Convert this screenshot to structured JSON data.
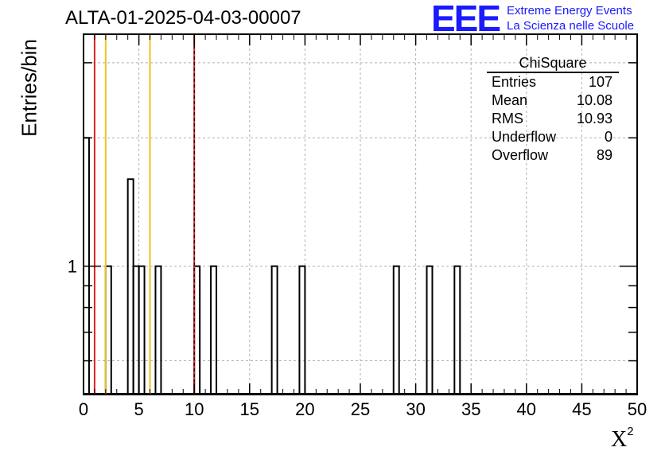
{
  "title": "ALTA-01-2025-04-03-00007",
  "logo": {
    "mark": "EEE",
    "line1": "Extreme Energy Events",
    "line2": "La Scienza nelle Scuole",
    "color": "#1a1aff"
  },
  "stats_box": {
    "title": "ChiSquare",
    "rows": [
      {
        "label": "Entries",
        "value": "107"
      },
      {
        "label": "Mean",
        "value": "10.08"
      },
      {
        "label": "RMS",
        "value": "10.93"
      },
      {
        "label": "Underflow",
        "value": "0"
      },
      {
        "label": "Overflow",
        "value": "89"
      }
    ]
  },
  "chart_data": {
    "type": "histogram",
    "xlabel": "X",
    "xlabel_superscript": "2",
    "ylabel": "Entries/bin",
    "xlim": [
      0,
      50
    ],
    "ylim": [
      0.5,
      3.5
    ],
    "y_scale": "log",
    "bin_width": 0.5,
    "x_ticks": [
      "0",
      "5",
      "10",
      "15",
      "20",
      "25",
      "30",
      "35",
      "40",
      "45",
      "50"
    ],
    "y_tick_labels": [
      {
        "value": 1,
        "label": "1"
      }
    ],
    "grid": true,
    "bins": [
      {
        "x": 0.0,
        "count": 2
      },
      {
        "x": 2.0,
        "count": 1
      },
      {
        "x": 4.0,
        "count": 1.6
      },
      {
        "x": 4.5,
        "count": 1
      },
      {
        "x": 5.0,
        "count": 1
      },
      {
        "x": 6.5,
        "count": 1
      },
      {
        "x": 10.0,
        "count": 1
      },
      {
        "x": 11.5,
        "count": 1
      },
      {
        "x": 17.0,
        "count": 1
      },
      {
        "x": 19.5,
        "count": 1
      },
      {
        "x": 28.0,
        "count": 1
      },
      {
        "x": 31.0,
        "count": 1
      },
      {
        "x": 33.5,
        "count": 1
      }
    ],
    "reference_lines": [
      {
        "x": 1.0,
        "color": "#dd2222",
        "style": "solid"
      },
      {
        "x": 2.0,
        "color": "#f0c020",
        "style": "solid"
      },
      {
        "x": 6.0,
        "color": "#f0c020",
        "style": "solid"
      },
      {
        "x": 10.0,
        "color": "#dd2222",
        "style": "solid"
      },
      {
        "x": 10.0,
        "color": "#000000",
        "style": "dashed"
      }
    ]
  }
}
